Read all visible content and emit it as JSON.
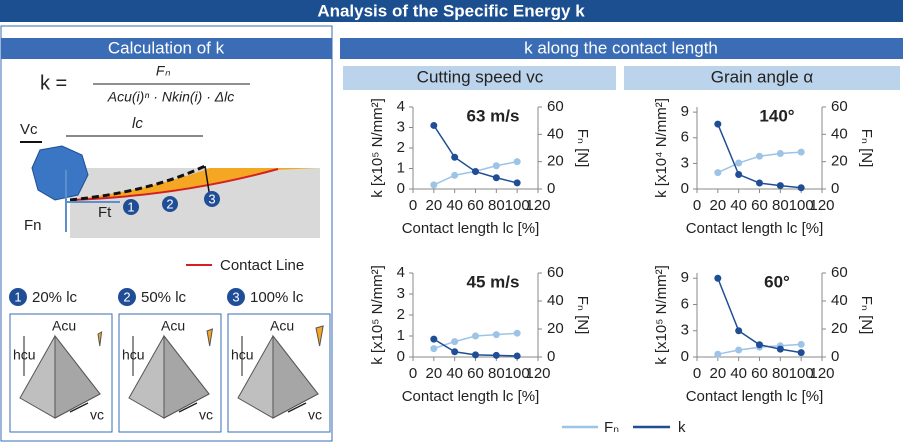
{
  "header": {
    "title": "Analysis of the Specific Energy k"
  },
  "left": {
    "title": "Calculation of k",
    "formula": {
      "lhs": "k =",
      "numerator": "Fₙ",
      "denominator": "Acu(i)ⁿ · Nkin(i) · Δlc"
    },
    "diagram": {
      "vc": "Vc",
      "lc": "lc",
      "fn": "Fn",
      "ft": "Ft",
      "steps": [
        "1",
        "2",
        "3"
      ],
      "contact_line": "Contact Line"
    },
    "cases": [
      {
        "num": "1",
        "label": "20% lc"
      },
      {
        "num": "2",
        "label": "50% lc"
      },
      {
        "num": "3",
        "label": "100% lc"
      }
    ],
    "box_labels": {
      "acu": "Acu",
      "hcu": "hcu",
      "vc": "vc"
    }
  },
  "right": {
    "title": "k along the contact length",
    "columns": [
      "Cutting speed vc",
      "Grain angle α"
    ]
  },
  "chart_data": [
    {
      "type": "line",
      "annotation": "63 m/s",
      "xlabel": "Contact length lc [%]",
      "ylabel": "k [x10⁵ N/mm²]",
      "y2label": "Fₙ [N]",
      "xlim": [
        0,
        120
      ],
      "xticks": [
        0,
        20,
        40,
        60,
        80,
        100,
        120
      ],
      "ylim": [
        0,
        4
      ],
      "yticks": [
        0,
        1,
        2,
        3,
        4
      ],
      "y2lim": [
        0,
        60
      ],
      "y2ticks": [
        0,
        20,
        40,
        60
      ],
      "x": [
        20,
        40,
        60,
        80,
        100
      ],
      "series": [
        {
          "name": "Fₙ",
          "color": "#9dc3e6",
          "axis": "y2",
          "values": [
            3,
            10,
            13,
            17,
            20
          ]
        },
        {
          "name": "k",
          "color": "#1f4e96",
          "values": [
            3.1,
            1.55,
            0.85,
            0.55,
            0.3
          ]
        }
      ]
    },
    {
      "type": "line",
      "annotation": "140°",
      "xlabel": "Contact length lc [%]",
      "ylabel": "k [x10⁴ N/mm²]",
      "y2label": "Fₙ [N]",
      "xlim": [
        0,
        120
      ],
      "xticks": [
        0,
        20,
        40,
        60,
        80,
        100,
        120
      ],
      "ylim": [
        0,
        9.6
      ],
      "yticks": [
        0,
        3,
        6,
        9
      ],
      "y2lim": [
        0,
        60
      ],
      "y2ticks": [
        0,
        20,
        40,
        60
      ],
      "x": [
        20,
        40,
        60,
        80,
        100
      ],
      "series": [
        {
          "name": "Fₙ",
          "color": "#9dc3e6",
          "axis": "y2",
          "values": [
            12,
            19,
            24,
            26,
            27
          ]
        },
        {
          "name": "k",
          "color": "#1f4e96",
          "values": [
            7.6,
            1.7,
            0.7,
            0.4,
            0.15
          ]
        }
      ]
    },
    {
      "type": "line",
      "annotation": "45 m/s",
      "xlabel": "Contact length lc [%]",
      "ylabel": "k [x10⁵ N/mm²]",
      "y2label": "Fₙ [N]",
      "xlim": [
        0,
        120
      ],
      "xticks": [
        0,
        20,
        40,
        60,
        80,
        100,
        120
      ],
      "ylim": [
        0,
        4
      ],
      "yticks": [
        0,
        1,
        2,
        3,
        4
      ],
      "y2lim": [
        0,
        60
      ],
      "y2ticks": [
        0,
        20,
        40,
        60
      ],
      "x": [
        20,
        40,
        60,
        80,
        100
      ],
      "series": [
        {
          "name": "Fₙ",
          "color": "#9dc3e6",
          "axis": "y2",
          "values": [
            6,
            11,
            15,
            16,
            17
          ]
        },
        {
          "name": "k",
          "color": "#1f4e96",
          "values": [
            0.85,
            0.25,
            0.1,
            0.08,
            0.05
          ]
        }
      ]
    },
    {
      "type": "line",
      "annotation": "60°",
      "xlabel": "Contact length lc [%]",
      "ylabel": "k [x10⁵ N/mm²]",
      "y2label": "Fₙ [N]",
      "xlim": [
        0,
        120
      ],
      "xticks": [
        0,
        20,
        40,
        60,
        80,
        100,
        120
      ],
      "ylim": [
        0,
        9.6
      ],
      "yticks": [
        0,
        3,
        6,
        9
      ],
      "y2lim": [
        0,
        60
      ],
      "y2ticks": [
        0,
        20,
        40,
        60
      ],
      "x": [
        20,
        40,
        60,
        80,
        100
      ],
      "series": [
        {
          "name": "Fₙ",
          "color": "#9dc3e6",
          "axis": "y2",
          "values": [
            2,
            5,
            7,
            8,
            9
          ]
        },
        {
          "name": "k",
          "color": "#1f4e96",
          "values": [
            9,
            3,
            1.4,
            0.9,
            0.5
          ]
        }
      ]
    }
  ]
}
